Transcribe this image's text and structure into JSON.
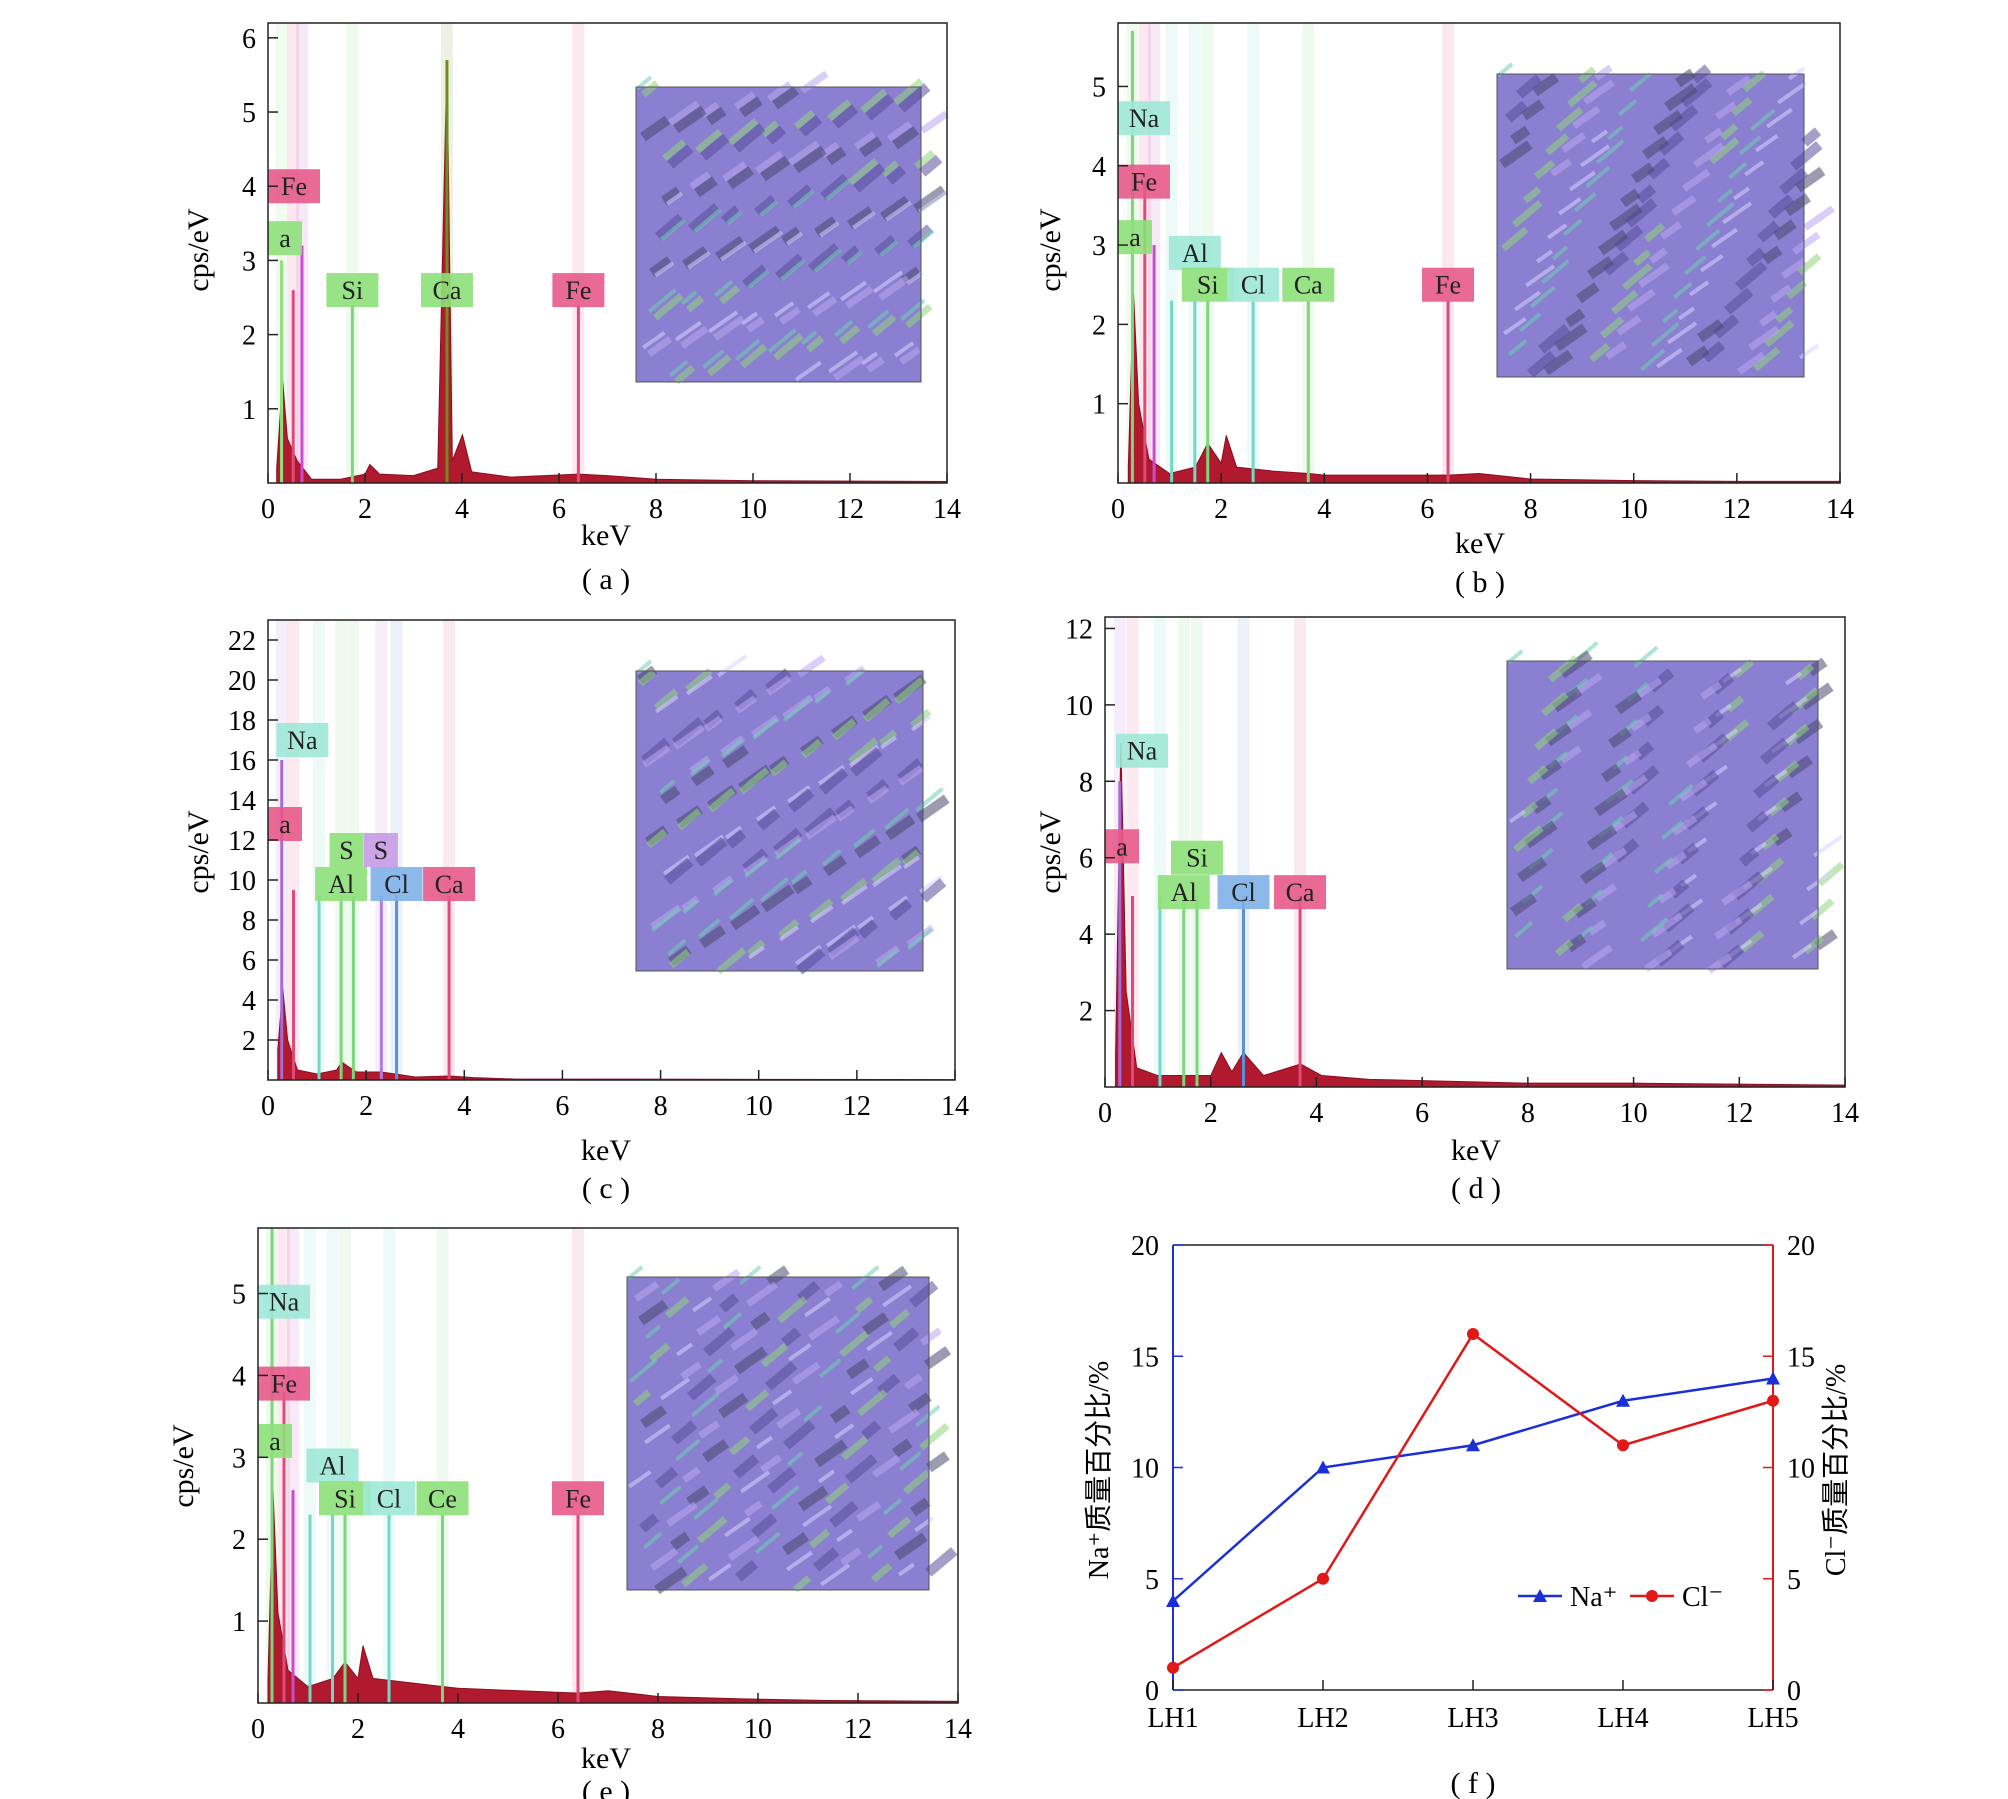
{
  "panels": [
    {
      "id": "a",
      "caption": "( a )",
      "chart_data": {
        "type": "line",
        "xlabel": "keV",
        "ylabel": "cps/eV",
        "xlim": [
          0,
          14
        ],
        "ylim": [
          0,
          6.2
        ],
        "xticks": [
          0,
          2,
          4,
          6,
          8,
          10,
          12,
          14
        ],
        "yticks": [
          1,
          2,
          3,
          4,
          5,
          6
        ],
        "element_labels": [
          {
            "text": "Fe",
            "color": "#e75a8a",
            "x": 0.5,
            "y": 4.0
          },
          {
            "text": "a",
            "color": "#8ee07a",
            "x": 0.25,
            "y": 3.3
          },
          {
            "text": "Si",
            "color": "#8ee07a",
            "x": 1.74,
            "y": 2.6
          },
          {
            "text": "Ca",
            "color": "#8ee07a",
            "x": 3.69,
            "y": 2.6
          },
          {
            "text": "Fe",
            "color": "#e75a8a",
            "x": 6.4,
            "y": 2.6
          }
        ],
        "peaks": [
          {
            "x": 0.28,
            "y": 3.0,
            "color": "#8ee07a"
          },
          {
            "x": 0.52,
            "y": 2.6,
            "color": "#e04a78"
          },
          {
            "x": 0.7,
            "y": 3.2,
            "color": "#c94ccf"
          },
          {
            "x": 1.74,
            "y": 2.4,
            "color": "#7cd67a"
          },
          {
            "x": 3.69,
            "y": 5.7,
            "color": "#6b8f1f"
          },
          {
            "x": 6.4,
            "y": 2.4,
            "color": "#e04a78"
          }
        ],
        "spectrum": [
          [
            0.18,
            0.2
          ],
          [
            0.3,
            1.4
          ],
          [
            0.4,
            0.6
          ],
          [
            0.6,
            0.3
          ],
          [
            0.9,
            0.05
          ],
          [
            1.5,
            0.05
          ],
          [
            2.0,
            0.12
          ],
          [
            2.1,
            0.25
          ],
          [
            2.3,
            0.12
          ],
          [
            3.0,
            0.1
          ],
          [
            3.5,
            0.2
          ],
          [
            3.69,
            5.7
          ],
          [
            3.8,
            0.3
          ],
          [
            4.01,
            0.65
          ],
          [
            4.2,
            0.15
          ],
          [
            5.0,
            0.08
          ],
          [
            6.4,
            0.12
          ],
          [
            7.0,
            0.1
          ],
          [
            8.0,
            0.05
          ],
          [
            10.0,
            0.03
          ],
          [
            14.0,
            0.02
          ]
        ]
      }
    },
    {
      "id": "b",
      "caption": "( b )",
      "chart_data": {
        "type": "line",
        "xlabel": "keV",
        "ylabel": "cps/eV",
        "xlim": [
          0,
          14
        ],
        "ylim": [
          0,
          5.8
        ],
        "xticks": [
          0,
          2,
          4,
          6,
          8,
          10,
          12,
          14
        ],
        "yticks": [
          1,
          2,
          3,
          4,
          5
        ],
        "element_labels": [
          {
            "text": "Na",
            "color": "#9fe8d8",
            "x": 0.5,
            "y": 4.6
          },
          {
            "text": "Fe",
            "color": "#e75a8a",
            "x": 0.5,
            "y": 3.8
          },
          {
            "text": "a",
            "color": "#8ee07a",
            "x": 0.2,
            "y": 3.1
          },
          {
            "text": "Al",
            "color": "#9fe8d8",
            "x": 1.49,
            "y": 2.9
          },
          {
            "text": "Si",
            "color": "#8ee07a",
            "x": 1.74,
            "y": 2.5
          },
          {
            "text": "Cl",
            "color": "#9fe8d8",
            "x": 2.62,
            "y": 2.5
          },
          {
            "text": "Ca",
            "color": "#8ee07a",
            "x": 3.69,
            "y": 2.5
          },
          {
            "text": "Fe",
            "color": "#e75a8a",
            "x": 6.4,
            "y": 2.5
          }
        ],
        "peaks": [
          {
            "x": 0.28,
            "y": 5.7,
            "color": "#7cd67a"
          },
          {
            "x": 0.52,
            "y": 3.8,
            "color": "#e04a78"
          },
          {
            "x": 0.7,
            "y": 3.0,
            "color": "#c94ccf"
          },
          {
            "x": 1.04,
            "y": 2.3,
            "color": "#6fd9c4"
          },
          {
            "x": 1.49,
            "y": 2.3,
            "color": "#6fd9c4"
          },
          {
            "x": 1.74,
            "y": 2.3,
            "color": "#7cd67a"
          },
          {
            "x": 2.62,
            "y": 2.3,
            "color": "#6fd9c4"
          },
          {
            "x": 3.69,
            "y": 2.3,
            "color": "#7cd67a"
          },
          {
            "x": 6.4,
            "y": 2.3,
            "color": "#e04a78"
          }
        ],
        "spectrum": [
          [
            0.2,
            0.2
          ],
          [
            0.3,
            2.4
          ],
          [
            0.4,
            1.0
          ],
          [
            0.6,
            0.3
          ],
          [
            1.0,
            0.12
          ],
          [
            1.5,
            0.2
          ],
          [
            1.74,
            0.5
          ],
          [
            2.0,
            0.25
          ],
          [
            2.1,
            0.6
          ],
          [
            2.3,
            0.2
          ],
          [
            3.0,
            0.15
          ],
          [
            3.7,
            0.12
          ],
          [
            4.0,
            0.1
          ],
          [
            6.4,
            0.1
          ],
          [
            7.0,
            0.12
          ],
          [
            8.0,
            0.05
          ],
          [
            10.0,
            0.03
          ],
          [
            12.0,
            0.02
          ],
          [
            14.0,
            0.02
          ]
        ]
      }
    },
    {
      "id": "c",
      "caption": "( c )",
      "chart_data": {
        "type": "line",
        "xlabel": "keV",
        "ylabel": "cps/eV",
        "xlim": [
          0,
          14
        ],
        "ylim": [
          0,
          23
        ],
        "xticks": [
          0,
          2,
          4,
          6,
          8,
          10,
          12,
          14
        ],
        "yticks": [
          2,
          4,
          6,
          8,
          10,
          12,
          14,
          16,
          18,
          20,
          22
        ],
        "element_labels": [
          {
            "text": "Na",
            "color": "#9fe8d8",
            "x": 0.7,
            "y": 17.0
          },
          {
            "text": "a",
            "color": "#e75a8a",
            "x": 0.2,
            "y": 12.8
          },
          {
            "text": "S",
            "color": "#8ee07a",
            "x": 1.6,
            "y": 11.5
          },
          {
            "text": "S",
            "color": "#c89ae6",
            "x": 2.3,
            "y": 11.5
          },
          {
            "text": "Al",
            "color": "#8ee07a",
            "x": 1.49,
            "y": 9.8
          },
          {
            "text": "Cl",
            "color": "#7fb1e8",
            "x": 2.62,
            "y": 9.8
          },
          {
            "text": "Ca",
            "color": "#e75a8a",
            "x": 3.69,
            "y": 9.8
          }
        ],
        "peaks": [
          {
            "x": 0.28,
            "y": 16.0,
            "color": "#a86ad6"
          },
          {
            "x": 0.52,
            "y": 9.5,
            "color": "#e04a78"
          },
          {
            "x": 1.04,
            "y": 9.2,
            "color": "#6fd9c4"
          },
          {
            "x": 1.49,
            "y": 9.2,
            "color": "#7cd67a"
          },
          {
            "x": 1.74,
            "y": 9.2,
            "color": "#7cd67a"
          },
          {
            "x": 2.31,
            "y": 9.2,
            "color": "#b57ae0"
          },
          {
            "x": 2.62,
            "y": 9.2,
            "color": "#5b8fd6"
          },
          {
            "x": 3.69,
            "y": 9.2,
            "color": "#e04a78"
          }
        ],
        "spectrum": [
          [
            0.2,
            1.5
          ],
          [
            0.3,
            4.6
          ],
          [
            0.4,
            2.0
          ],
          [
            0.6,
            0.5
          ],
          [
            1.0,
            0.3
          ],
          [
            1.4,
            0.5
          ],
          [
            1.5,
            0.9
          ],
          [
            1.8,
            0.4
          ],
          [
            2.3,
            0.4
          ],
          [
            2.6,
            0.3
          ],
          [
            3.0,
            0.15
          ],
          [
            3.7,
            0.2
          ],
          [
            4.2,
            0.12
          ],
          [
            5.0,
            0.05
          ],
          [
            14.0,
            0.02
          ]
        ]
      }
    },
    {
      "id": "d",
      "caption": "( d )",
      "chart_data": {
        "type": "line",
        "xlabel": "keV",
        "ylabel": "cps/eV",
        "xlim": [
          0,
          14
        ],
        "ylim": [
          0,
          12.3
        ],
        "xticks": [
          0,
          2,
          4,
          6,
          8,
          10,
          12,
          14
        ],
        "yticks": [
          2,
          4,
          6,
          8,
          10,
          12
        ],
        "element_labels": [
          {
            "text": "Na",
            "color": "#9fe8d8",
            "x": 0.7,
            "y": 8.8
          },
          {
            "text": "a",
            "color": "#e75a8a",
            "x": 0.2,
            "y": 6.3
          },
          {
            "text": "Si",
            "color": "#8ee07a",
            "x": 1.74,
            "y": 6.0
          },
          {
            "text": "Al",
            "color": "#8ee07a",
            "x": 1.49,
            "y": 5.1
          },
          {
            "text": "Cl",
            "color": "#7fb1e8",
            "x": 2.62,
            "y": 5.1
          },
          {
            "text": "Ca",
            "color": "#e75a8a",
            "x": 3.69,
            "y": 5.1
          }
        ],
        "peaks": [
          {
            "x": 0.28,
            "y": 8.0,
            "color": "#a86ad6"
          },
          {
            "x": 0.52,
            "y": 5.0,
            "color": "#e04a78"
          },
          {
            "x": 1.04,
            "y": 5.0,
            "color": "#6fd9c4"
          },
          {
            "x": 1.49,
            "y": 5.0,
            "color": "#7cd67a"
          },
          {
            "x": 1.74,
            "y": 5.0,
            "color": "#7cd67a"
          },
          {
            "x": 2.62,
            "y": 5.0,
            "color": "#5b8fd6"
          },
          {
            "x": 3.69,
            "y": 5.0,
            "color": "#e04a78"
          }
        ],
        "spectrum": [
          [
            0.2,
            0.8
          ],
          [
            0.3,
            9.0
          ],
          [
            0.4,
            2.5
          ],
          [
            0.6,
            0.5
          ],
          [
            1.0,
            0.3
          ],
          [
            1.7,
            0.3
          ],
          [
            2.0,
            0.3
          ],
          [
            2.2,
            0.9
          ],
          [
            2.4,
            0.4
          ],
          [
            2.62,
            0.9
          ],
          [
            3.0,
            0.3
          ],
          [
            3.7,
            0.6
          ],
          [
            4.1,
            0.3
          ],
          [
            5.0,
            0.2
          ],
          [
            8.0,
            0.1
          ],
          [
            10.0,
            0.1
          ],
          [
            14.0,
            0.05
          ]
        ]
      }
    },
    {
      "id": "e",
      "caption": "( e )",
      "chart_data": {
        "type": "line",
        "xlabel": "keV",
        "ylabel": "cps/eV",
        "xlim": [
          0,
          14
        ],
        "ylim": [
          0,
          5.8
        ],
        "xticks": [
          0,
          2,
          4,
          6,
          8,
          10,
          12,
          14
        ],
        "yticks": [
          1,
          2,
          3,
          4,
          5
        ],
        "element_labels": [
          {
            "text": "Na",
            "color": "#9fe8d8",
            "x": 0.5,
            "y": 4.9
          },
          {
            "text": "Fe",
            "color": "#e75a8a",
            "x": 0.4,
            "y": 3.9
          },
          {
            "text": "a",
            "color": "#8ee07a",
            "x": 0.2,
            "y": 3.2
          },
          {
            "text": "Al",
            "color": "#9fe8d8",
            "x": 1.49,
            "y": 2.9
          },
          {
            "text": "Si",
            "color": "#8ee07a",
            "x": 1.74,
            "y": 2.5
          },
          {
            "text": "Cl",
            "color": "#9fe8d8",
            "x": 2.62,
            "y": 2.5
          },
          {
            "text": "Ce",
            "color": "#8ee07a",
            "x": 3.69,
            "y": 2.5
          },
          {
            "text": "Fe",
            "color": "#e75a8a",
            "x": 6.4,
            "y": 2.5
          }
        ],
        "peaks": [
          {
            "x": 0.28,
            "y": 5.8,
            "color": "#7cd67a"
          },
          {
            "x": 0.52,
            "y": 3.8,
            "color": "#e04a78"
          },
          {
            "x": 0.7,
            "y": 2.6,
            "color": "#c94ccf"
          },
          {
            "x": 1.04,
            "y": 2.3,
            "color": "#6fd9c4"
          },
          {
            "x": 1.49,
            "y": 2.3,
            "color": "#6fd9c4"
          },
          {
            "x": 1.74,
            "y": 2.3,
            "color": "#7cd67a"
          },
          {
            "x": 2.62,
            "y": 2.3,
            "color": "#6fd9c4"
          },
          {
            "x": 3.69,
            "y": 2.3,
            "color": "#7cd67a"
          },
          {
            "x": 6.4,
            "y": 2.3,
            "color": "#e04a78"
          }
        ],
        "spectrum": [
          [
            0.2,
            0.3
          ],
          [
            0.3,
            2.6
          ],
          [
            0.4,
            1.1
          ],
          [
            0.6,
            0.4
          ],
          [
            1.0,
            0.2
          ],
          [
            1.5,
            0.3
          ],
          [
            1.74,
            0.5
          ],
          [
            2.0,
            0.3
          ],
          [
            2.1,
            0.7
          ],
          [
            2.3,
            0.3
          ],
          [
            3.0,
            0.25
          ],
          [
            3.7,
            0.2
          ],
          [
            4.0,
            0.18
          ],
          [
            6.4,
            0.12
          ],
          [
            7.0,
            0.15
          ],
          [
            8.0,
            0.08
          ],
          [
            9.7,
            0.05
          ],
          [
            11.4,
            0.03
          ],
          [
            14.0,
            0.02
          ]
        ]
      }
    }
  ],
  "panel_f": {
    "caption": "( f )",
    "chart_data": {
      "type": "line",
      "categories": [
        "LH1",
        "LH2",
        "LH3",
        "LH4",
        "LH5"
      ],
      "ylabel_left": "Na⁺质量百分比/%",
      "ylabel_right": "Cl⁻质量百分比/%",
      "ylim": [
        0,
        20
      ],
      "yticks": [
        0,
        5,
        10,
        15,
        20
      ],
      "series": [
        {
          "name": "Na⁺",
          "color": "#1a2fd6",
          "marker": "triangle",
          "values": [
            4,
            10,
            11,
            13,
            14
          ]
        },
        {
          "name": "Cl⁻",
          "color": "#e01818",
          "marker": "circle",
          "values": [
            1,
            5,
            16,
            11,
            13
          ]
        }
      ],
      "legend_position": "lower-right"
    }
  }
}
